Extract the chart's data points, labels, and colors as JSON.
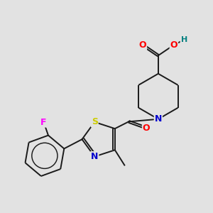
{
  "background_color": "#e2e2e2",
  "bond_color": "#1a1a1a",
  "atom_colors": {
    "O": "#ff0000",
    "N": "#0000cd",
    "S": "#cccc00",
    "F": "#ff00ff",
    "H": "#008080",
    "C": "#1a1a1a"
  },
  "font_size_atoms": 9,
  "line_width": 1.4
}
